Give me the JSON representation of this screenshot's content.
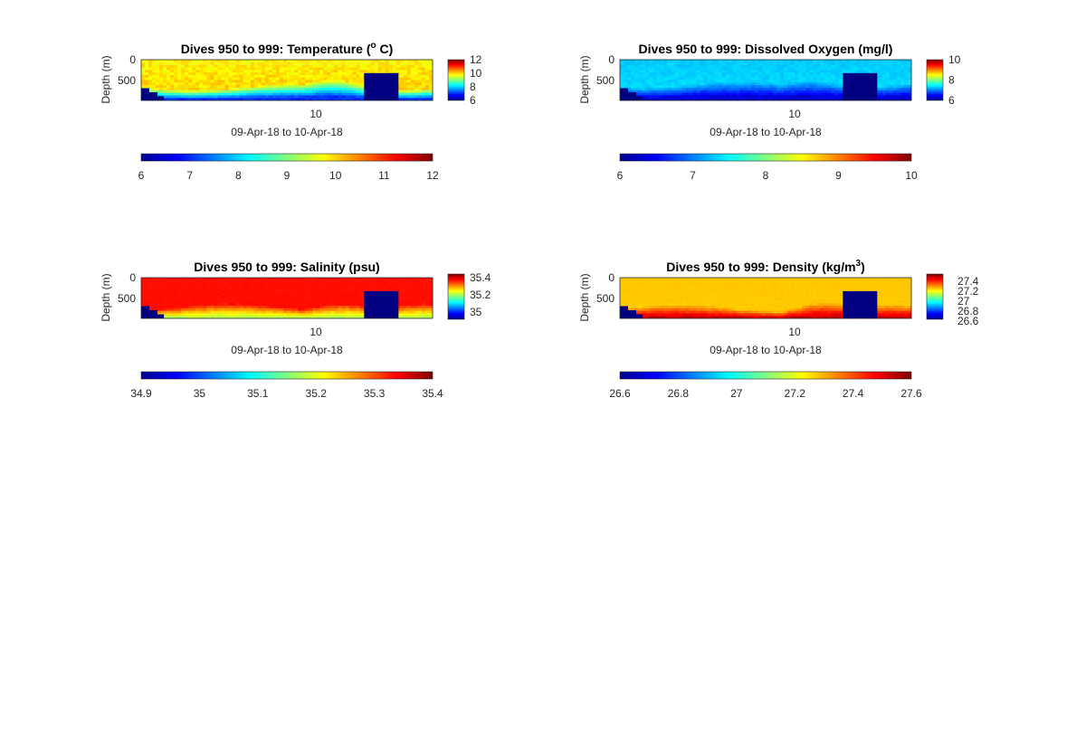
{
  "chart_data": [
    {
      "type": "heatmap",
      "title_prefix": "Dives 950 to 999: Temperature (",
      "title_sup": "o",
      "title_suffix": " C)",
      "ylabel": "Depth (m)",
      "xlabel": "09-Apr-18 to 10-Apr-18",
      "xticks": [
        "10"
      ],
      "yticks": [
        "0",
        "500"
      ],
      "yrange": [
        0,
        900
      ],
      "vertical_colorbar_ticks": [
        "12",
        "10",
        "8",
        "6"
      ],
      "horizontal_colorbar_ticks": [
        "6",
        "7",
        "8",
        "9",
        "10",
        "11",
        "12"
      ],
      "clim": [
        6,
        12
      ],
      "colormap": "jet",
      "field": {
        "surface": 9.8,
        "gradient": 0.9,
        "deep_band": 7.0,
        "deep_band_start": 0.65,
        "trough": 0.0
      }
    },
    {
      "type": "heatmap",
      "title": "Dives 950 to 999: Dissolved Oxygen (mg/l)",
      "ylabel": "Depth (m)",
      "xlabel": "09-Apr-18 to 10-Apr-18",
      "xticks": [
        "10"
      ],
      "yticks": [
        "0",
        "500"
      ],
      "yrange": [
        0,
        900
      ],
      "vertical_colorbar_ticks": [
        "10",
        "8",
        "6"
      ],
      "horizontal_colorbar_ticks": [
        "6",
        "7",
        "8",
        "9",
        "10"
      ],
      "clim": [
        6,
        10
      ],
      "colormap": "jet",
      "field": {
        "surface": 7.3,
        "gradient": 0.4,
        "deep_band": 6.3,
        "deep_band_start": 0.6,
        "trough": 0.0
      }
    },
    {
      "type": "heatmap",
      "title": "Dives 950 to 999: Salinity (psu)",
      "ylabel": "Depth (m)",
      "xlabel": "09-Apr-18 to 10-Apr-18",
      "xticks": [
        "10"
      ],
      "yticks": [
        "0",
        "500"
      ],
      "yrange": [
        0,
        900
      ],
      "vertical_colorbar_ticks": [
        "35.4",
        "35.2",
        "35"
      ],
      "horizontal_colorbar_ticks": [
        "34.9",
        "35",
        "35.1",
        "35.2",
        "35.3",
        "35.4"
      ],
      "clim": [
        34.9,
        35.4
      ],
      "colormap": "jet",
      "field": {
        "surface": 35.33,
        "gradient": 0.1,
        "deep_band": 35.18,
        "deep_band_start": 0.7,
        "trough": 0.0
      }
    },
    {
      "type": "heatmap",
      "title_prefix": "Dives 950 to 999: Density (kg/m",
      "title_sup": "3",
      "title_suffix": ")",
      "ylabel": "Depth (m)",
      "xlabel": "09-Apr-18 to 10-Apr-18",
      "xticks": [
        "10"
      ],
      "yticks": [
        "0",
        "500"
      ],
      "yrange": [
        0,
        900
      ],
      "vertical_colorbar_ticks": [
        "27.4",
        "27.2",
        "27",
        "26.8",
        "26.6"
      ],
      "horizontal_colorbar_ticks": [
        "26.6",
        "26.8",
        "27",
        "27.2",
        "27.4",
        "27.6"
      ],
      "clim": [
        26.6,
        27.6
      ],
      "colormap": "jet",
      "field": {
        "surface": 27.28,
        "gradient": -0.1,
        "deep_band": 27.52,
        "deep_band_start": 0.72,
        "trough": 0.0
      }
    }
  ]
}
